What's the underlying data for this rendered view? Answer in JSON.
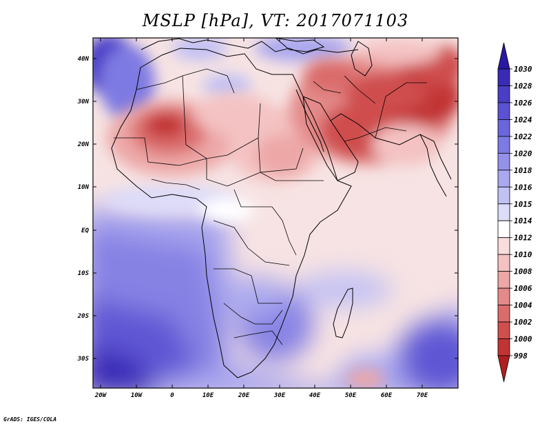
{
  "title": "MSLP [hPa], VT: 2017071103",
  "credit": "GrADS: IGES/COLA",
  "lat_labels": [
    "40N",
    "30N",
    "20N",
    "10N",
    "EQ",
    "10S",
    "20S",
    "30S"
  ],
  "lon_labels": [
    "20W",
    "10W",
    "0",
    "10E",
    "20E",
    "30E",
    "40E",
    "50E",
    "60E",
    "70E"
  ],
  "colorbar": {
    "levels": [
      "1030",
      "1028",
      "1026",
      "1024",
      "1022",
      "1020",
      "1018",
      "1016",
      "1015",
      "1014",
      "1012",
      "1010",
      "1008",
      "1006",
      "1004",
      "1002",
      "1000",
      "998"
    ],
    "colors": [
      "#2a17a3",
      "#3a2ab7",
      "#4a3ec6",
      "#5a52d2",
      "#6b66dc",
      "#7e7ae3",
      "#9491ea",
      "#aaa8ef",
      "#c2c1f4",
      "#dddcf9",
      "#ffffff",
      "#f9dcdc",
      "#f4c2c2",
      "#eda7a7",
      "#e48a8a",
      "#da6c6c",
      "#cf4e4e",
      "#c23434",
      "#b01f1f"
    ]
  },
  "colors": {
    "low_pressure": "#c23434",
    "high_pressure": "#3a2ab7",
    "neutral": "#ffffff"
  }
}
